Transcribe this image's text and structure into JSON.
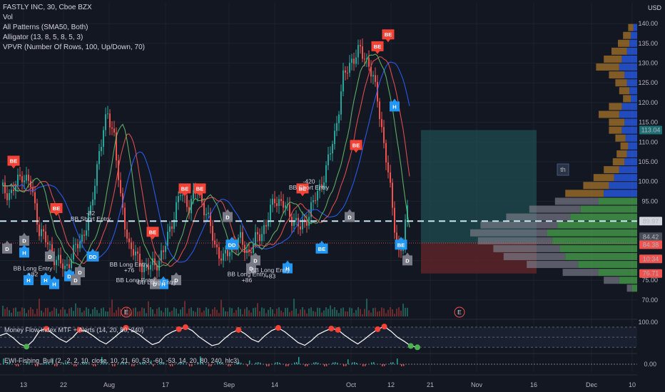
{
  "legend": {
    "symbol": "FASTLY INC, 30, Cboe BZX",
    "vol": "Vol",
    "patterns": "All Patterns (SMA50, Both)",
    "alligator": "Alligator (13, 8, 5, 8, 5, 3)",
    "vpvr": "VPVR (Number Of Rows, 100, Up/Down, 70)"
  },
  "currency": "USD",
  "mfi_label": "Money Flow Index MTF + Alerts (14, 20, 80, 240)",
  "ewi_label": "EWI-Fishing_Bull (2, -2, 2, 10, close, 10, 21, 60, 53, -60, -53, 14, 20, 80, 240, hlc3)",
  "colors": {
    "background": "#131722",
    "candle_up": "#26a69a",
    "candle_down": "#ef5350",
    "jaw": "#2962ff",
    "teeth": "#ef5350",
    "lips": "#66bb6a",
    "bullish_signal": "#2196f3",
    "bearish_signal": "#f44336",
    "neutral_signal": "#787b86",
    "profit_zone": "#1e4c4f",
    "loss_zone": "#5c2429",
    "vp_up": "#4caf50",
    "vp_down": "#787b86"
  },
  "chart_data": {
    "type": "candlestick",
    "x_ticks": [
      "13",
      "22",
      "Aug",
      "17",
      "Sep",
      "14",
      "Oct",
      "12",
      "21",
      "Nov",
      "16",
      "Dec",
      "10"
    ],
    "y_ticks": [
      70,
      75,
      80,
      85,
      90,
      95,
      100,
      105,
      110,
      115,
      120,
      125,
      130,
      135,
      140
    ],
    "y_range": [
      68,
      142
    ],
    "price_path": [
      [
        0,
        98
      ],
      [
        5,
        97
      ],
      [
        10,
        102
      ],
      [
        14,
        99
      ],
      [
        18,
        88
      ],
      [
        22,
        84
      ],
      [
        26,
        80
      ],
      [
        30,
        78
      ],
      [
        34,
        82
      ],
      [
        38,
        86
      ],
      [
        42,
        92
      ],
      [
        46,
        108
      ],
      [
        50,
        117
      ],
      [
        53,
        112
      ],
      [
        56,
        95
      ],
      [
        60,
        84
      ],
      [
        64,
        80
      ],
      [
        68,
        78
      ],
      [
        72,
        79
      ],
      [
        76,
        82
      ],
      [
        80,
        90
      ],
      [
        84,
        97
      ],
      [
        88,
        94
      ],
      [
        92,
        98
      ],
      [
        96,
        92
      ],
      [
        100,
        84
      ],
      [
        104,
        80
      ],
      [
        108,
        84
      ],
      [
        112,
        85
      ],
      [
        116,
        82
      ],
      [
        120,
        86
      ],
      [
        124,
        89
      ],
      [
        128,
        96
      ],
      [
        132,
        94
      ],
      [
        136,
        91
      ],
      [
        140,
        88
      ],
      [
        144,
        92
      ],
      [
        148,
        97
      ],
      [
        152,
        103
      ],
      [
        156,
        112
      ],
      [
        160,
        126
      ],
      [
        164,
        131
      ],
      [
        168,
        133
      ],
      [
        172,
        130
      ],
      [
        176,
        121
      ],
      [
        180,
        106
      ],
      [
        184,
        89
      ],
      [
        186,
        82
      ],
      [
        188,
        84
      ],
      [
        190,
        93
      ]
    ],
    "price_labels": [
      {
        "text": "113.04",
        "value": 113.04,
        "color": "#1e6e72"
      },
      {
        "text": "89.97",
        "value": 89.97,
        "color": "#d1d4dc",
        "text_color": "#131722"
      },
      {
        "text": "84.42",
        "value": 84.42,
        "color": "#4a4e59"
      },
      {
        "text": "84.38",
        "value": 84.38,
        "color": "#ef5350"
      },
      {
        "text": "10:34",
        "value": 80.6,
        "color": "#ef5350"
      },
      {
        "text": "76.71",
        "value": 76.71,
        "color": "#ef5350"
      }
    ],
    "dashed_level": 89.97,
    "dotted_level": 84.42,
    "position": {
      "entry": 84.42,
      "target": 113.04,
      "stop": 76.71
    },
    "signals": [
      {
        "text": "BE",
        "type": "bear",
        "x": 5,
        "y": 104
      },
      {
        "text": "BE",
        "type": "bear",
        "x": 25,
        "y": 92
      },
      {
        "text": "BE",
        "type": "bear",
        "x": 70,
        "y": 86
      },
      {
        "text": "BE",
        "type": "bear",
        "x": 85,
        "y": 97
      },
      {
        "text": "BE",
        "type": "bear",
        "x": 92,
        "y": 97
      },
      {
        "text": "BE",
        "type": "bear",
        "x": 140,
        "y": 97
      },
      {
        "text": "BE",
        "type": "bear",
        "x": 165,
        "y": 108
      },
      {
        "text": "BE",
        "type": "bear",
        "x": 175,
        "y": 133
      },
      {
        "text": "BE",
        "type": "bear",
        "x": 180,
        "y": 136
      },
      {
        "text": "D",
        "type": "neutral",
        "x": 2,
        "y": 85
      },
      {
        "text": "D",
        "type": "neutral",
        "x": 10,
        "y": 87
      },
      {
        "text": "H",
        "type": "bull",
        "x": 10,
        "y": 84
      },
      {
        "text": "D",
        "type": "neutral",
        "x": 22,
        "y": 83
      },
      {
        "text": "H",
        "type": "bull",
        "x": 12,
        "y": 77
      },
      {
        "text": "H",
        "type": "bull",
        "x": 20,
        "y": 77
      },
      {
        "text": "H",
        "type": "bull",
        "x": 24,
        "y": 76
      },
      {
        "text": "D",
        "type": "bull",
        "x": 31,
        "y": 78
      },
      {
        "text": "D",
        "type": "neutral",
        "x": 34,
        "y": 77
      },
      {
        "text": "DD",
        "type": "bull",
        "x": 42,
        "y": 83
      },
      {
        "text": "D",
        "type": "neutral",
        "x": 36,
        "y": 79
      },
      {
        "text": "H",
        "type": "bull",
        "x": 75,
        "y": 76
      },
      {
        "text": "D",
        "type": "neutral",
        "x": 71,
        "y": 76
      },
      {
        "text": "D",
        "type": "neutral",
        "x": 81,
        "y": 77
      },
      {
        "text": "D",
        "type": "neutral",
        "x": 105,
        "y": 93
      },
      {
        "text": "DD",
        "type": "bull",
        "x": 107,
        "y": 86
      },
      {
        "text": "D",
        "type": "neutral",
        "x": 118,
        "y": 82
      },
      {
        "text": "D",
        "type": "neutral",
        "x": 116,
        "y": 80
      },
      {
        "text": "H",
        "type": "bull",
        "x": 133,
        "y": 80
      },
      {
        "text": "BE",
        "type": "bull",
        "x": 149,
        "y": 85
      },
      {
        "text": "D",
        "type": "neutral",
        "x": 162,
        "y": 93
      },
      {
        "text": "H",
        "type": "bull",
        "x": 183,
        "y": 121
      },
      {
        "text": "BE",
        "type": "bull",
        "x": 186,
        "y": 86
      },
      {
        "text": "D",
        "type": "neutral",
        "x": 189,
        "y": 82
      }
    ],
    "annotations": [
      {
        "text": "-82",
        "x": 41,
        "y": 91.5
      },
      {
        "text": "BB Short Entry",
        "x": 41,
        "y": 90
      },
      {
        "text": "-420",
        "x": 143,
        "y": 99.5
      },
      {
        "text": "BB Short Entry",
        "x": 143,
        "y": 98
      },
      {
        "text": "BB Long Entry",
        "x": 14,
        "y": 77.5
      },
      {
        "text": "+82",
        "x": 14,
        "y": 76
      },
      {
        "text": "BB Long Entry",
        "x": 59,
        "y": 78.5
      },
      {
        "text": "+76",
        "x": 59,
        "y": 77
      },
      {
        "text": "BB Long Entry",
        "x": 62,
        "y": 74.5
      },
      {
        "text": "BB Long Entry",
        "x": 72,
        "y": 74
      },
      {
        "text": "BB Long Entry",
        "x": 125,
        "y": 77
      },
      {
        "text": "BB Long Entry",
        "x": 114,
        "y": 76
      },
      {
        "text": "+86",
        "x": 114,
        "y": 74.5
      },
      {
        "text": "+83",
        "x": 125,
        "y": 75.5
      }
    ],
    "earnings_markers": [
      "E",
      "E"
    ],
    "position_label": "th",
    "volume_profile": [
      {
        "price": 139,
        "up": 3,
        "down": 4
      },
      {
        "price": 137,
        "up": 5,
        "down": 6
      },
      {
        "price": 135,
        "up": 6,
        "down": 9
      },
      {
        "price": 133,
        "up": 8,
        "down": 12
      },
      {
        "price": 131,
        "up": 12,
        "down": 14
      },
      {
        "price": 129,
        "up": 14,
        "down": 18
      },
      {
        "price": 127,
        "up": 10,
        "down": 12
      },
      {
        "price": 125,
        "up": 8,
        "down": 9
      },
      {
        "price": 123,
        "up": 6,
        "down": 8
      },
      {
        "price": 121,
        "up": 5,
        "down": 6
      },
      {
        "price": 119,
        "up": 12,
        "down": 10
      },
      {
        "price": 117,
        "up": 14,
        "down": 16
      },
      {
        "price": 115,
        "up": 10,
        "down": 12
      },
      {
        "price": 113,
        "up": 12,
        "down": 10
      },
      {
        "price": 111,
        "up": 9,
        "down": 8
      },
      {
        "price": 109,
        "up": 7,
        "down": 6
      },
      {
        "price": 107,
        "up": 8,
        "down": 8
      },
      {
        "price": 105,
        "up": 10,
        "down": 9
      },
      {
        "price": 103,
        "up": 14,
        "down": 12
      },
      {
        "price": 101,
        "up": 18,
        "down": 16
      },
      {
        "price": 99,
        "up": 22,
        "down": 20
      },
      {
        "price": 97,
        "up": 26,
        "down": 30
      },
      {
        "price": 95,
        "up": 30,
        "down": 34
      },
      {
        "price": 93,
        "up": 44,
        "down": 40
      },
      {
        "price": 91,
        "up": 52,
        "down": 50
      },
      {
        "price": 89,
        "up": 62,
        "down": 60
      },
      {
        "price": 87,
        "up": 70,
        "down": 60
      },
      {
        "price": 85,
        "up": 66,
        "down": 58
      },
      {
        "price": 83,
        "up": 60,
        "down": 52
      },
      {
        "price": 81,
        "up": 56,
        "down": 48
      },
      {
        "price": 79,
        "up": 46,
        "down": 40
      },
      {
        "price": 77,
        "up": 30,
        "down": 28
      },
      {
        "price": 75,
        "up": 14,
        "down": 12
      },
      {
        "price": 73,
        "up": 4,
        "down": 4
      }
    ],
    "mfi": {
      "levels": [
        80,
        50,
        20
      ],
      "values": [
        55,
        62,
        48,
        30,
        22,
        40,
        70,
        75,
        60,
        45,
        35,
        50,
        72,
        68,
        55,
        40,
        30,
        45,
        62,
        78,
        70,
        58,
        42,
        28,
        35,
        55,
        66,
        74,
        80,
        70,
        52,
        38,
        25,
        30,
        48,
        64,
        72,
        60,
        44,
        36,
        55,
        70,
        78,
        66,
        50,
        34,
        26,
        40,
        58,
        68,
        76,
        72,
        56,
        42,
        30,
        44,
        60,
        74,
        82,
        68,
        50,
        38,
        24,
        20
      ],
      "ylim": [
        10,
        95
      ],
      "axis_label": "100.00"
    },
    "ewi": {
      "axis_label": "0.00"
    }
  }
}
